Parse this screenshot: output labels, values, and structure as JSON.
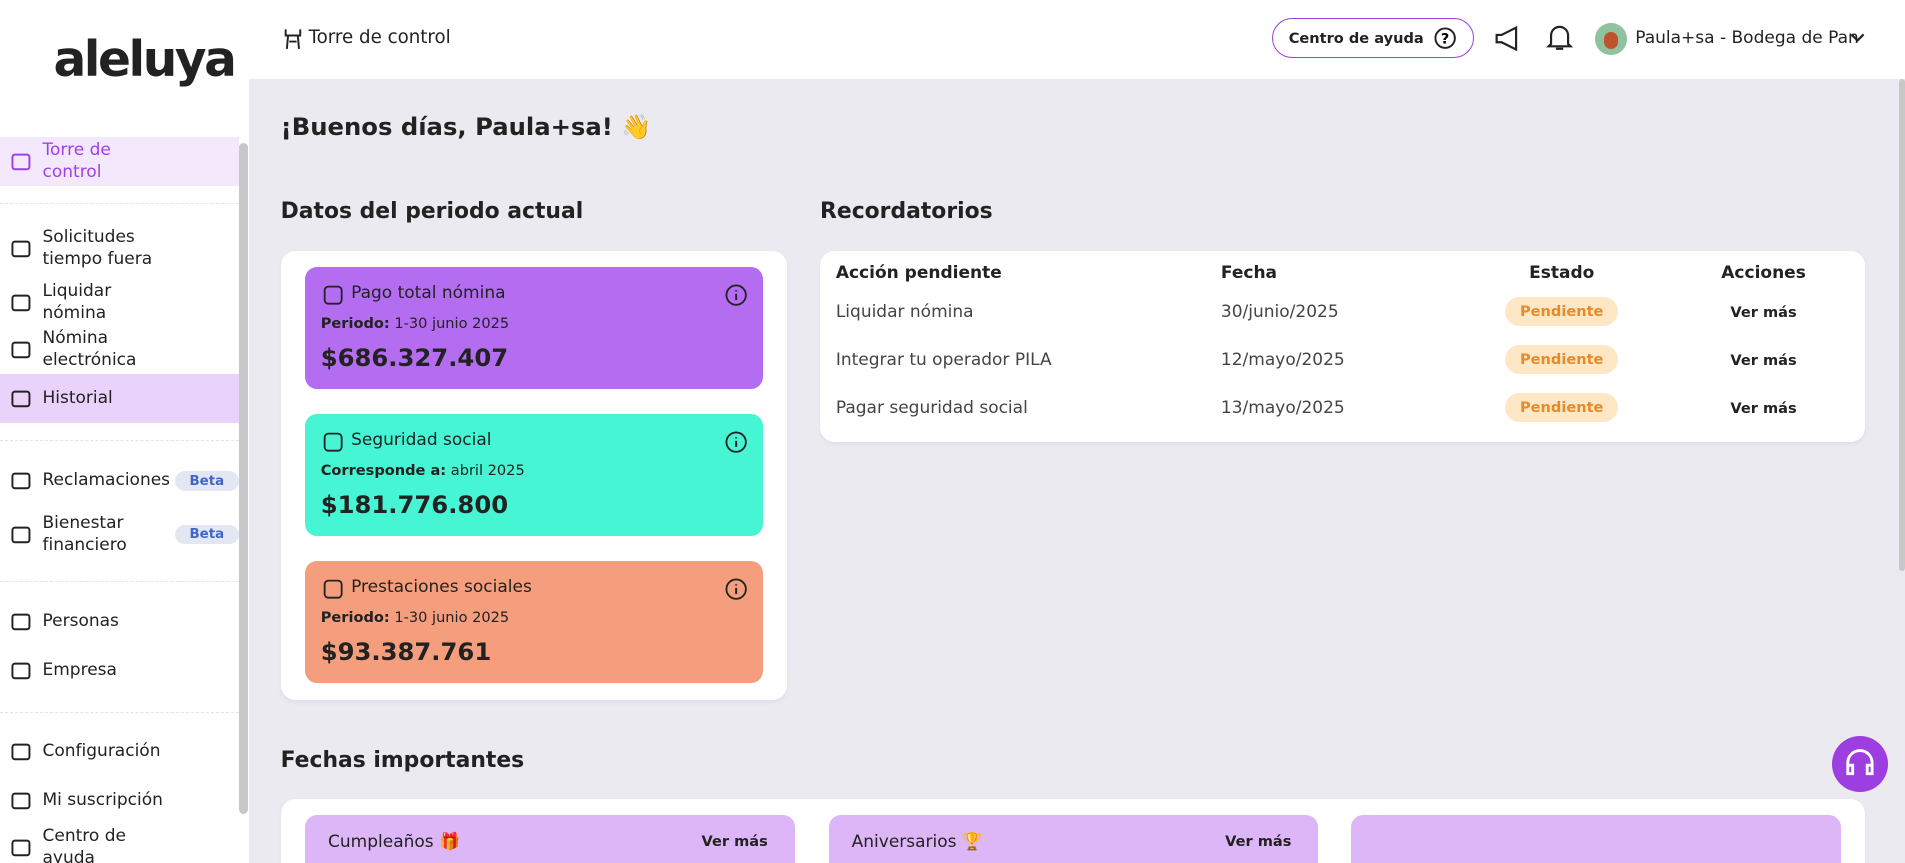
{
  "sidebar": {
    "logo": "aleluya",
    "items": [
      {
        "label": "Torre de control"
      },
      {
        "label": "Solicitudes tiempo fuera"
      },
      {
        "label": "Liquidar nómina"
      },
      {
        "label": "Nómina electrónica"
      },
      {
        "label": "Historial"
      },
      {
        "label": "Reclamaciones",
        "badge": "Beta"
      },
      {
        "label": "Bienestar financiero",
        "badge": "Beta"
      },
      {
        "label": "Personas"
      },
      {
        "label": "Empresa"
      },
      {
        "label": "Configuración"
      },
      {
        "label": "Mi suscripción"
      },
      {
        "label": "Centro de ayuda"
      }
    ]
  },
  "header": {
    "page": "Torre de control",
    "help": "Centro de ayuda",
    "company": "Paula+sa - Bodega de Pan"
  },
  "greeting": "¡Buenos días, Paula+sa! 👋",
  "period": {
    "title": "Datos del periodo actual",
    "cards": [
      {
        "title": "Pago total nómina",
        "period_label": "Periodo:",
        "period": "1-30 junio 2025",
        "amount": "$686.327.407"
      },
      {
        "title": "Seguridad social",
        "period_label": "Corresponde a:",
        "period": "abril 2025",
        "amount": "$181.776.800"
      },
      {
        "title": "Prestaciones sociales",
        "period_label": "Periodo:",
        "period": "1-30 junio 2025",
        "amount": "$93.387.761"
      }
    ]
  },
  "reminders": {
    "title": "Recordatorios",
    "columns": [
      "Acción pendiente",
      "Fecha",
      "Estado",
      "Acciones"
    ],
    "rows": [
      [
        "Liquidar nómina",
        "30/junio/2025",
        "Pendiente",
        "Ver más"
      ],
      [
        "Integrar tu operador PILA",
        "12/mayo/2025",
        "Pendiente",
        "Ver más"
      ],
      [
        "Pagar seguridad social",
        "13/mayo/2025",
        "Pendiente",
        "Ver más"
      ]
    ]
  },
  "important_dates": {
    "title": "Fechas importantes",
    "cards": [
      {
        "title": "Cumpleaños 🎁",
        "action": "Ver más"
      },
      {
        "title": "Aniversarios 🏆",
        "action": "Ver más"
      }
    ]
  }
}
